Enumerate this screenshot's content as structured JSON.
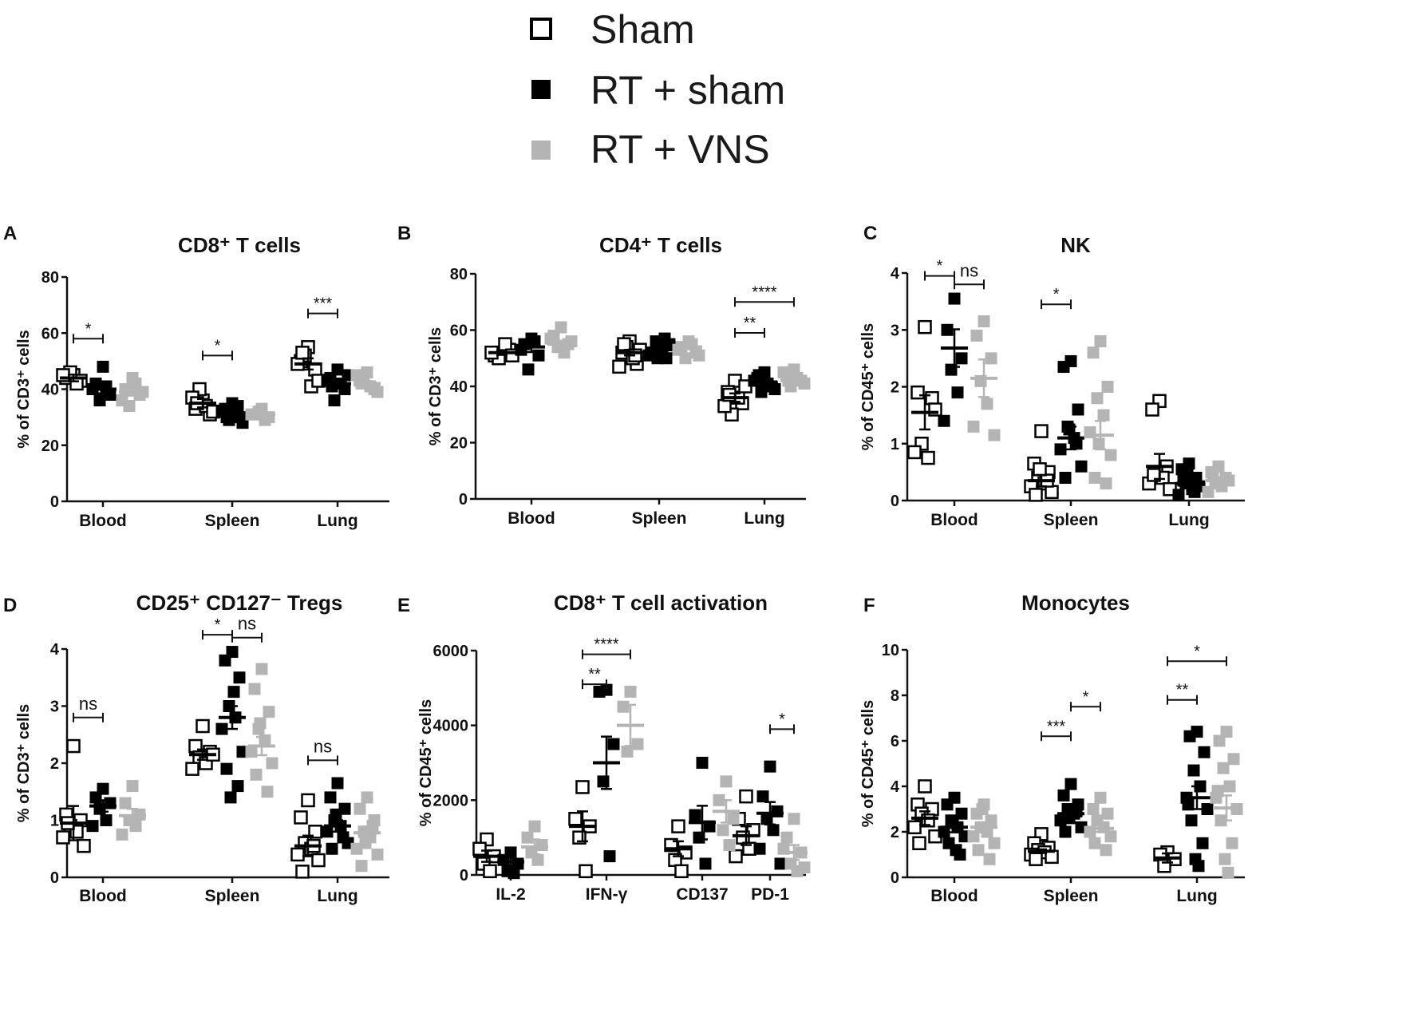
{
  "legend": {
    "entries": [
      {
        "label": "Sham",
        "marker": "open-square",
        "color": "#000000"
      },
      {
        "label": "RT + sham",
        "marker": "filled-square",
        "color": "#000000"
      },
      {
        "label": "RT + VNS",
        "marker": "filled-square",
        "color": "#b4b4b4"
      }
    ]
  },
  "colors": {
    "sham": "#000000",
    "rt_sham": "#000000",
    "rt_vns": "#b4b4b4"
  },
  "chart_data": [
    {
      "letter": "A",
      "type": "scatter",
      "title": "CD8⁺ T cells",
      "ylabel": "% of CD3⁺ cells",
      "ylim": [
        0,
        80
      ],
      "yticks": [
        0,
        20,
        40,
        60,
        80
      ],
      "categories": [
        "Blood",
        "Spleen",
        "Lung"
      ],
      "series": [
        {
          "name": "Sham",
          "points": [
            [
              45,
              44,
              43,
              46,
              42,
              45
            ],
            [
              36,
              33,
              31,
              40,
              34,
              37,
              32,
              35
            ],
            [
              55,
              50,
              47,
              52,
              41,
              49,
              43,
              53
            ]
          ],
          "mean": [
            44,
            35,
            49
          ],
          "sem": [
            1.2,
            1.5,
            2.0
          ]
        },
        {
          "name": "RT + sham",
          "points": [
            [
              48,
              42,
              38,
              36,
              41,
              40
            ],
            [
              35,
              33,
              30,
              29,
              31,
              32,
              28,
              30,
              34,
              31
            ],
            [
              47,
              44,
              40,
              36,
              42,
              43,
              45,
              41
            ]
          ],
          "mean": [
            40,
            31,
            42
          ],
          "sem": [
            1.5,
            0.8,
            1.2
          ]
        },
        {
          "name": "RT + VNS",
          "points": [
            [
              44,
              40,
              38,
              34,
              42,
              36,
              39
            ],
            [
              33,
              31,
              30,
              32,
              29,
              31
            ],
            [
              46,
              43,
              40,
              44,
              41,
              45,
              39,
              42
            ]
          ],
          "mean": [
            39,
            31,
            42
          ],
          "sem": [
            1.3,
            0.6,
            0.9
          ]
        }
      ],
      "comparisons": [
        {
          "category": "Blood",
          "from": 0,
          "to": 1,
          "y": 58,
          "label": "*"
        },
        {
          "category": "Spleen",
          "from": 0,
          "to": 1,
          "y": 52,
          "label": "*"
        },
        {
          "category": "Lung",
          "from": 0,
          "to": 1,
          "y": 67,
          "label": "***"
        }
      ]
    },
    {
      "letter": "B",
      "type": "scatter",
      "title": "CD4⁺ T cells",
      "ylabel": "% of CD3⁺ cells",
      "ylim": [
        0,
        80
      ],
      "yticks": [
        0,
        20,
        40,
        60,
        80
      ],
      "categories": [
        "Blood",
        "Spleen",
        "Lung"
      ],
      "series": [
        {
          "name": "Sham",
          "points": [
            [
              52,
              51,
              53,
              50,
              55,
              52,
              51
            ],
            [
              56,
              52,
              48,
              54,
              50,
              47,
              53,
              55,
              51
            ],
            [
              42,
              38,
              34,
              30,
              36,
              33,
              40,
              37
            ]
          ],
          "mean": [
            52,
            52,
            36
          ],
          "sem": [
            0.8,
            1.0,
            1.5
          ]
        },
        {
          "name": "RT + sham",
          "points": [
            [
              57,
              55,
              51,
              46,
              56,
              53
            ],
            [
              54,
              52,
              50,
              56,
              53,
              51,
              55,
              52,
              57,
              50
            ],
            [
              45,
              43,
              40,
              38,
              41,
              42,
              39,
              44
            ]
          ],
          "mean": [
            54,
            53,
            41
          ],
          "sem": [
            1.8,
            0.9,
            0.8
          ]
        },
        {
          "name": "RT + VNS",
          "points": [
            [
              61,
              58,
              55,
              54,
              52,
              57,
              56
            ],
            [
              56,
              54,
              52,
              50,
              55,
              53,
              51
            ],
            [
              46,
              44,
              42,
              40,
              43,
              45,
              41,
              42
            ]
          ],
          "mean": [
            55,
            54,
            42
          ],
          "sem": [
            1.2,
            0.8,
            0.7
          ]
        }
      ],
      "comparisons": [
        {
          "category": "Lung",
          "from": 0,
          "to": 1,
          "y": 59,
          "label": "**"
        },
        {
          "category": "Lung",
          "from": 0,
          "to": 2,
          "y": 70,
          "label": "****"
        }
      ]
    },
    {
      "letter": "C",
      "type": "scatter",
      "title": "NK",
      "ylabel": "% of CD45⁺ cells",
      "ylim": [
        0,
        4
      ],
      "yticks": [
        0,
        1,
        2,
        3,
        4
      ],
      "categories": [
        "Blood",
        "Spleen",
        "Lung"
      ],
      "series": [
        {
          "name": "Sham",
          "points": [
            [
              3.05,
              1.9,
              1.8,
              1.0,
              0.75,
              0.85,
              1.6
            ],
            [
              1.22,
              0.65,
              0.5,
              0.4,
              0.3,
              0.25,
              0.15,
              0.1,
              0.35,
              0.55
            ],
            [
              1.75,
              1.6,
              0.6,
              0.5,
              0.4,
              0.3,
              0.2,
              0.45
            ]
          ],
          "mean": [
            1.55,
            0.35,
            0.6
          ],
          "sem": [
            0.3,
            0.1,
            0.22
          ]
        },
        {
          "name": "RT + sham",
          "points": [
            [
              3.55,
              3.0,
              2.5,
              2.3,
              1.9,
              1.4
            ],
            [
              2.45,
              2.35,
              1.6,
              1.3,
              1.1,
              0.9,
              0.6,
              0.4,
              1.0,
              1.25
            ],
            [
              0.65,
              0.55,
              0.4,
              0.3,
              0.2,
              0.1,
              0.25,
              0.35,
              0.15,
              0.5
            ]
          ],
          "mean": [
            2.68,
            1.1,
            0.3
          ],
          "sem": [
            0.33,
            0.2,
            0.06
          ]
        },
        {
          "name": "RT + VNS",
          "points": [
            [
              3.15,
              2.9,
              2.5,
              2.1,
              1.7,
              1.3,
              1.15
            ],
            [
              2.8,
              2.6,
              2.0,
              1.8,
              1.5,
              1.2,
              0.8,
              0.4,
              0.3,
              1.0
            ],
            [
              0.6,
              0.5,
              0.4,
              0.3,
              0.25,
              0.15,
              0.35,
              0.45
            ]
          ],
          "mean": [
            2.15,
            1.15,
            0.35
          ],
          "sem": [
            0.33,
            0.25,
            0.06
          ]
        }
      ],
      "comparisons": [
        {
          "category": "Blood",
          "from": 0,
          "to": 1,
          "y": 3.95,
          "label": "*"
        },
        {
          "category": "Blood",
          "from": 1,
          "to": 2,
          "y": 3.8,
          "label": "ns"
        },
        {
          "category": "Spleen",
          "from": 0,
          "to": 1,
          "y": 3.45,
          "label": "*"
        }
      ]
    },
    {
      "letter": "D",
      "type": "scatter",
      "title": "CD25⁺ CD127⁻ Tregs",
      "ylabel": "% of CD3⁺ cells",
      "ylim": [
        0,
        4
      ],
      "yticks": [
        0,
        1,
        2,
        3,
        4
      ],
      "categories": [
        "Blood",
        "Spleen",
        "Lung"
      ],
      "series": [
        {
          "name": "Sham",
          "points": [
            [
              2.3,
              1.1,
              1.0,
              0.9,
              0.8,
              0.7,
              0.55,
              0.95
            ],
            [
              2.65,
              2.3,
              2.2,
              2.1,
              2.0,
              1.9,
              2.15
            ],
            [
              1.35,
              1.05,
              0.8,
              0.6,
              0.5,
              0.4,
              0.3,
              0.1,
              0.55
            ]
          ],
          "mean": [
            0.95,
            2.15,
            0.55
          ],
          "sem": [
            0.3,
            0.09,
            0.18
          ]
        },
        {
          "name": "RT + sham",
          "points": [
            [
              1.55,
              1.4,
              1.3,
              1.2,
              1.0,
              0.9
            ],
            [
              3.95,
              3.8,
              3.5,
              3.0,
              2.8,
              2.6,
              2.2,
              1.9,
              1.6,
              1.4,
              3.25
            ],
            [
              1.65,
              1.4,
              1.2,
              1.0,
              0.9,
              0.8,
              0.6,
              0.5,
              0.7,
              1.1
            ]
          ],
          "mean": [
            1.25,
            2.8,
            0.9
          ],
          "sem": [
            0.1,
            0.2,
            0.1
          ]
        },
        {
          "name": "RT + VNS",
          "points": [
            [
              1.6,
              1.3,
              1.1,
              1.0,
              0.9,
              0.75
            ],
            [
              3.65,
              3.3,
              2.9,
              2.6,
              2.4,
              2.2,
              2.0,
              1.8,
              1.5,
              2.7
            ],
            [
              1.4,
              1.2,
              1.0,
              0.8,
              0.7,
              0.5,
              0.4,
              0.2,
              0.9,
              0.6
            ]
          ],
          "mean": [
            1.08,
            2.3,
            0.78
          ],
          "sem": [
            0.12,
            0.16,
            0.11
          ]
        }
      ],
      "comparisons": [
        {
          "category": "Blood",
          "from": 0,
          "to": 1,
          "y": 2.8,
          "label": "ns"
        },
        {
          "category": "Spleen",
          "from": 0,
          "to": 1,
          "y": 4.25,
          "label": "*"
        },
        {
          "category": "Spleen",
          "from": 1,
          "to": 2,
          "y": 4.2,
          "label": "ns"
        },
        {
          "category": "Lung",
          "from": 0,
          "to": 1,
          "y": 2.05,
          "label": "ns"
        }
      ]
    },
    {
      "letter": "E",
      "type": "scatter",
      "title": "CD8⁺ T cell activation",
      "ylabel": "% of CD45⁺ cells",
      "ylim": [
        0,
        6000
      ],
      "yticks": [
        0,
        2000,
        4000,
        6000
      ],
      "categories": [
        "IL-2",
        "IFN-γ",
        "CD137",
        "PD-1"
      ],
      "series": [
        {
          "name": "Sham",
          "points": [
            [
              950,
              700,
              500,
              300,
              100
            ],
            [
              2350,
              1500,
              1300,
              1000,
              100
            ],
            [
              1300,
              800,
              600,
              400,
              100
            ],
            [
              2100,
              1500,
              1200,
              1000,
              700,
              500
            ]
          ],
          "mean": [
            500,
            1300,
            700,
            1050
          ],
          "sem": [
            150,
            400,
            200,
            250
          ]
        },
        {
          "name": "RT + sham",
          "points": [
            [
              600,
              400,
              300,
              100,
              50
            ],
            [
              4950,
              4900,
              3500,
              2500,
              500
            ],
            [
              3000,
              1600,
              1300,
              1000,
              300
            ],
            [
              2900,
              2100,
              1700,
              1500,
              1200,
              700,
              300
            ]
          ],
          "mean": [
            350,
            3000,
            1400,
            1650
          ],
          "sem": [
            100,
            700,
            450,
            300
          ]
        },
        {
          "name": "RT + VNS",
          "points": [
            [
              1300,
              1000,
              800,
              600,
              400
            ],
            [
              4900,
              4500,
              3500,
              3300
            ],
            [
              2500,
              2000,
              1500,
              1200,
              800
            ],
            [
              1500,
              1000,
              600,
              300,
              100,
              700,
              200
            ]
          ],
          "mean": [
            750,
            4000,
            1700,
            600
          ],
          "sem": [
            200,
            550,
            300,
            200
          ]
        }
      ],
      "comparisons": [
        {
          "category": "IFN-γ",
          "from": 0,
          "to": 1,
          "y": 5100,
          "label": "**"
        },
        {
          "category": "IFN-γ",
          "from": 0,
          "to": 2,
          "y": 5900,
          "label": "****"
        },
        {
          "category": "PD-1",
          "from": 1,
          "to": 2,
          "y": 3900,
          "label": "*"
        }
      ]
    },
    {
      "letter": "F",
      "type": "scatter",
      "title": "Monocytes",
      "ylabel": "% of CD45⁺ cells",
      "ylim": [
        0,
        10
      ],
      "yticks": [
        0,
        2,
        4,
        6,
        8,
        10
      ],
      "categories": [
        "Blood",
        "Spleen",
        "Lung"
      ],
      "series": [
        {
          "name": "Sham",
          "points": [
            [
              4.0,
              3.2,
              3.0,
              2.8,
              2.5,
              2.2,
              1.8,
              1.5
            ],
            [
              1.9,
              1.5,
              1.3,
              1.2,
              1.1,
              1.0,
              0.9,
              0.8
            ],
            [
              1.1,
              1.0,
              0.8,
              0.5
            ]
          ],
          "mean": [
            2.6,
            1.15,
            0.85
          ],
          "sem": [
            0.3,
            0.08,
            0.2
          ]
        },
        {
          "name": "RT + sham",
          "points": [
            [
              3.5,
              3.2,
              2.8,
              2.5,
              2.2,
              2.0,
              1.8,
              1.5,
              1.0,
              2.4,
              1.2
            ],
            [
              4.1,
              3.6,
              3.2,
              3.0,
              2.8,
              2.5,
              2.2,
              2.0,
              2.9,
              2.6
            ],
            [
              6.4,
              6.2,
              5.5,
              4.7,
              4.0,
              3.5,
              3.0,
              2.5,
              1.5,
              0.8,
              0.5,
              3.2
            ]
          ],
          "mean": [
            2.2,
            2.8,
            3.5
          ],
          "sem": [
            0.22,
            0.17,
            0.5
          ]
        },
        {
          "name": "RT + VNS",
          "points": [
            [
              3.2,
              2.8,
              2.5,
              2.2,
              2.0,
              1.8,
              1.5,
              1.2,
              0.8,
              3.0
            ],
            [
              3.5,
              3.0,
              2.8,
              2.5,
              2.2,
              2.0,
              1.8,
              1.5,
              1.2
            ],
            [
              6.4,
              6.0,
              5.2,
              4.8,
              4.0,
              3.5,
              3.0,
              2.5,
              1.5,
              0.8,
              0.2,
              3.8
            ]
          ],
          "mean": [
            2.2,
            2.15,
            3.05
          ],
          "sem": [
            0.2,
            0.15,
            0.55
          ]
        }
      ],
      "comparisons": [
        {
          "category": "Spleen",
          "from": 0,
          "to": 1,
          "y": 6.2,
          "label": "***"
        },
        {
          "category": "Spleen",
          "from": 1,
          "to": 2,
          "y": 7.5,
          "label": "*"
        },
        {
          "category": "Lung",
          "from": 0,
          "to": 1,
          "y": 7.8,
          "label": "**"
        },
        {
          "category": "Lung",
          "from": 0,
          "to": 2,
          "y": 9.5,
          "label": "*"
        }
      ]
    }
  ]
}
